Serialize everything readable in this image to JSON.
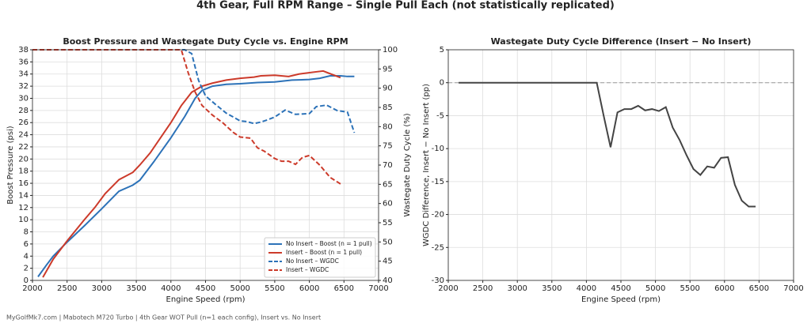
{
  "title": "4th Gear, Full RPM Range – Single Pull Each (not statistically replicated)",
  "footer": "MyGolfMk7.com | Mabotech M720 Turbo | 4th Gear WOT Pull (n=1 each config), Insert vs. No Insert",
  "chart_data": [
    {
      "type": "line",
      "title": "Boost Pressure and Wastegate Duty Cycle vs. Engine RPM",
      "x_label": "Engine Speed (rpm)",
      "y_label": "Boost Pressure (psi)",
      "y2_label": "Wastegate Duty Cycle (%)",
      "xlim": [
        2000,
        7000
      ],
      "xticks": [
        2000,
        2500,
        3000,
        3500,
        4000,
        4500,
        5000,
        5500,
        6000,
        6500,
        7000
      ],
      "ylim": [
        0,
        38
      ],
      "yticks": [
        0,
        2,
        4,
        6,
        8,
        10,
        12,
        14,
        16,
        18,
        20,
        22,
        24,
        26,
        28,
        30,
        32,
        34,
        36,
        38
      ],
      "y2lim": [
        40,
        100
      ],
      "y2ticks": [
        40,
        45,
        50,
        55,
        60,
        65,
        70,
        75,
        80,
        85,
        90,
        95,
        100
      ],
      "grid": true,
      "legend": "lower right",
      "series": [
        {
          "name": "No Insert – Boost (n = 1 pull)",
          "color": "#2c72b8",
          "style": "solid",
          "axis": "y",
          "x": [
            2080,
            2200,
            2300,
            2500,
            2750,
            3000,
            3250,
            3450,
            3550,
            3750,
            4000,
            4200,
            4350,
            4450,
            4600,
            4800,
            5000,
            5250,
            5500,
            5750,
            6000,
            6150,
            6300,
            6450,
            6550,
            6650
          ],
          "values": [
            0.6,
            2.5,
            4,
            6.3,
            9,
            11.8,
            14.7,
            15.7,
            16.5,
            19.5,
            23.5,
            27,
            30,
            31.3,
            32,
            32.3,
            32.4,
            32.6,
            32.7,
            33,
            33.1,
            33.3,
            33.7,
            33.7,
            33.6,
            33.6
          ]
        },
        {
          "name": "Insert – Boost (n = 1 pull)",
          "color": "#cc3a2a",
          "style": "solid",
          "axis": "y",
          "x": [
            2150,
            2300,
            2500,
            2750,
            2900,
            3050,
            3250,
            3450,
            3550,
            3700,
            4000,
            4150,
            4300,
            4450,
            4600,
            4800,
            5000,
            5200,
            5300,
            5500,
            5700,
            5850,
            6050,
            6200,
            6450
          ],
          "values": [
            0.5,
            3.5,
            6.5,
            10,
            12,
            14.3,
            16.6,
            17.8,
            19,
            21,
            26,
            28.8,
            31,
            32,
            32.5,
            33,
            33.3,
            33.5,
            33.7,
            33.8,
            33.6,
            34,
            34.3,
            34.5,
            33.4
          ]
        },
        {
          "name": "No Insert – WGDC",
          "color": "#2c72b8",
          "style": "dashed",
          "axis": "y2",
          "x": [
            2000,
            4200,
            4300,
            4400,
            4500,
            4650,
            4800,
            5000,
            5100,
            5200,
            5300,
            5400,
            5500,
            5650,
            5800,
            6000,
            6100,
            6250,
            6400,
            6550,
            6650
          ],
          "values": [
            100,
            100,
            99,
            92,
            88,
            85.7,
            83.5,
            81.5,
            81.3,
            80.8,
            81.2,
            81.8,
            82.5,
            84.3,
            83.2,
            83.4,
            85.2,
            85.6,
            84.2,
            83.8,
            78.4
          ]
        },
        {
          "name": "Insert – WGDC",
          "color": "#cc3a2a",
          "style": "dashed",
          "axis": "y2",
          "x": [
            2000,
            4150,
            4250,
            4350,
            4450,
            4600,
            4750,
            4900,
            5000,
            5150,
            5250,
            5350,
            5500,
            5600,
            5700,
            5800,
            5900,
            6000,
            6150,
            6300,
            6450
          ],
          "values": [
            100,
            100,
            94,
            89,
            85.5,
            83,
            81,
            78.5,
            77.3,
            77,
            74.5,
            73.6,
            71.7,
            71,
            71,
            70.2,
            72,
            72.5,
            70,
            66.8,
            65.1
          ]
        }
      ]
    },
    {
      "type": "line",
      "title": "Wastegate Duty Cycle Difference (Insert − No Insert)",
      "x_label": "Engine Speed (rpm)",
      "y_label": "WGDC Difference, Insert − No Insert (pp)",
      "xlim": [
        2000,
        7000
      ],
      "xticks": [
        2000,
        2500,
        3000,
        3500,
        4000,
        4500,
        5000,
        5500,
        6000,
        6500,
        7000
      ],
      "ylim": [
        -30,
        5
      ],
      "yticks": [
        -30,
        -25,
        -20,
        -15,
        -10,
        -5,
        0,
        5
      ],
      "grid": true,
      "hline": 0,
      "series": [
        {
          "color": "#444444",
          "style": "solid",
          "axis": "y",
          "x": [
            2150,
            4150,
            4250,
            4350,
            4450,
            4550,
            4650,
            4750,
            4850,
            4950,
            5050,
            5150,
            5250,
            5350,
            5450,
            5550,
            5650,
            5750,
            5850,
            5950,
            6050,
            6150,
            6250,
            6350,
            6450
          ],
          "values": [
            0,
            0,
            -5,
            -9.8,
            -4.5,
            -4,
            -4,
            -3.5,
            -4.2,
            -4,
            -4.3,
            -3.7,
            -6.8,
            -8.7,
            -11,
            -13.1,
            -14,
            -12.7,
            -12.9,
            -11.4,
            -11.3,
            -15.5,
            -17.9,
            -18.8,
            -18.8
          ]
        }
      ]
    }
  ]
}
